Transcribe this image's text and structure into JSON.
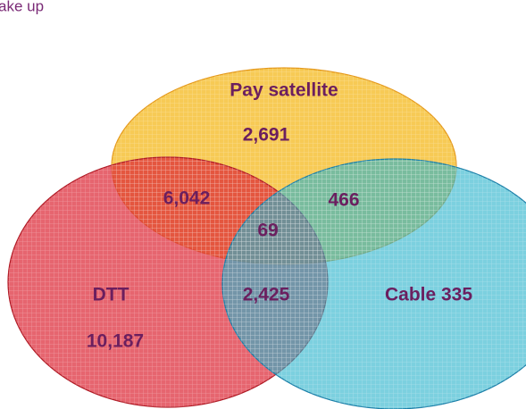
{
  "title": "ake up",
  "sets": [
    "Pay satellite",
    "DTT",
    "Cable 335"
  ],
  "regions": [
    "2,691",
    "6,042",
    "466",
    "69",
    "2,425",
    "10,187"
  ]
}
